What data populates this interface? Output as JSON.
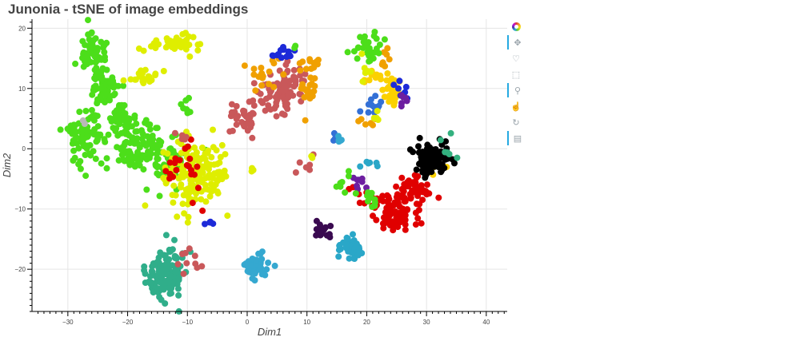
{
  "chart_data": {
    "type": "scatter",
    "title": "Junonia - tSNE of image embeddings",
    "xlabel": "Dim1",
    "ylabel": "Dim2",
    "xlim": [
      -36,
      43.5
    ],
    "ylim": [
      -27,
      21.5
    ],
    "xticks": [
      -30,
      -20,
      -10,
      0,
      10,
      20,
      30,
      40
    ],
    "yticks": [
      -20,
      -10,
      0,
      10,
      20
    ],
    "xtick_labels": [
      "−30",
      "−20",
      "−10",
      "0",
      "10",
      "20",
      "30",
      "40"
    ],
    "ytick_labels": [
      "−20",
      "−10",
      "0",
      "10",
      "20"
    ],
    "grid": true,
    "clusters": [
      {
        "color": "#4cde1a",
        "cx": -26,
        "cy": 16,
        "sx": 1.2,
        "sy": 1.6,
        "n": 60
      },
      {
        "color": "#4cde1a",
        "cx": -24,
        "cy": 10,
        "sx": 1.3,
        "sy": 1.8,
        "n": 55
      },
      {
        "color": "#4cde1a",
        "cx": -27,
        "cy": 2,
        "sx": 1.6,
        "sy": 2.0,
        "n": 80
      },
      {
        "color": "#4cde1a",
        "cx": -21,
        "cy": 4,
        "sx": 1.5,
        "sy": 1.5,
        "n": 45
      },
      {
        "color": "#4cde1a",
        "cx": -18,
        "cy": 0,
        "sx": 2.2,
        "sy": 2.2,
        "n": 90
      },
      {
        "color": "#4cde1a",
        "cx": -13,
        "cy": -2,
        "sx": 1.5,
        "sy": 2.2,
        "n": 45
      },
      {
        "color": "#4cde1a",
        "cx": -10,
        "cy": 7,
        "sx": 0.5,
        "sy": 0.8,
        "n": 8
      },
      {
        "color": "#dfee00",
        "cx": -12,
        "cy": 17.5,
        "sx": 1.8,
        "sy": 0.8,
        "n": 40
      },
      {
        "color": "#dfee00",
        "cx": -17,
        "cy": 12,
        "sx": 1.3,
        "sy": 0.8,
        "n": 25
      },
      {
        "color": "#dfee00",
        "cx": -9,
        "cy": -4,
        "sx": 2.5,
        "sy": 3.0,
        "n": 160
      },
      {
        "color": "#dfee00",
        "cx": -4,
        "cy": -4,
        "sx": 0.5,
        "sy": 0.5,
        "n": 4
      },
      {
        "color": "#e00000",
        "cx": -10,
        "cy": -4,
        "sx": 2.2,
        "sy": 2.5,
        "n": 22
      },
      {
        "color": "#e00000",
        "cx": 25,
        "cy": -10,
        "sx": 2.0,
        "sy": 1.5,
        "n": 70
      },
      {
        "color": "#e00000",
        "cx": 28,
        "cy": -7,
        "sx": 1.5,
        "sy": 1.3,
        "n": 40
      },
      {
        "color": "#e00000",
        "cx": 24,
        "cy": -13,
        "sx": 0.8,
        "sy": 1.0,
        "n": 12
      },
      {
        "color": "#e00000",
        "cx": 20,
        "cy": -8,
        "sx": 1.5,
        "sy": 1.5,
        "n": 12
      },
      {
        "color": "#30ae8a",
        "cx": -14,
        "cy": -21,
        "sx": 1.5,
        "sy": 1.8,
        "n": 130
      },
      {
        "color": "#30ae8a",
        "cx": -12,
        "cy": -17,
        "sx": 1.2,
        "sy": 0.8,
        "n": 12
      },
      {
        "color": "#c9585a",
        "cx": 6,
        "cy": 10,
        "sx": 1.8,
        "sy": 1.8,
        "n": 90
      },
      {
        "color": "#c9585a",
        "cx": 0,
        "cy": 5,
        "sx": 1.2,
        "sy": 1.5,
        "n": 35
      },
      {
        "color": "#c9585a",
        "cx": -10,
        "cy": -19,
        "sx": 1.3,
        "sy": 1.3,
        "n": 10
      },
      {
        "color": "#c9585a",
        "cx": 10,
        "cy": -3,
        "sx": 0.8,
        "sy": 0.6,
        "n": 6
      },
      {
        "color": "#c9585a",
        "cx": -11,
        "cy": 2,
        "sx": 0.8,
        "sy": 0.8,
        "n": 5
      },
      {
        "color": "#f0a000",
        "cx": 10,
        "cy": 11,
        "sx": 0.8,
        "sy": 2.0,
        "n": 25
      },
      {
        "color": "#f0a000",
        "cx": 3,
        "cy": 12,
        "sx": 1.5,
        "sy": 1.5,
        "n": 18
      },
      {
        "color": "#f0a000",
        "cx": 11,
        "cy": 14.5,
        "sx": 0.6,
        "sy": 0.4,
        "n": 6
      },
      {
        "color": "#f0a000",
        "cx": 23,
        "cy": 15,
        "sx": 0.4,
        "sy": 1.0,
        "n": 8
      },
      {
        "color": "#f0a000",
        "cx": 20,
        "cy": 4.5,
        "sx": 0.8,
        "sy": 0.8,
        "n": 6
      },
      {
        "color": "#fbd100",
        "cx": 24,
        "cy": 10,
        "sx": 1.0,
        "sy": 1.5,
        "n": 40
      },
      {
        "color": "#fbd100",
        "cx": 21,
        "cy": 12,
        "sx": 0.8,
        "sy": 0.8,
        "n": 10
      },
      {
        "color": "#fbd100",
        "cx": 30,
        "cy": -4,
        "sx": 1.5,
        "sy": 1.0,
        "n": 6
      },
      {
        "color": "#1d2ad8",
        "cx": 6,
        "cy": 15.5,
        "sx": 0.8,
        "sy": 0.5,
        "n": 14
      },
      {
        "color": "#1d2ad8",
        "cx": -6,
        "cy": -12.5,
        "sx": 0.8,
        "sy": 0.2,
        "n": 4
      },
      {
        "color": "#1d2ad8",
        "cx": 25,
        "cy": 9,
        "sx": 1.0,
        "sy": 1.5,
        "n": 8
      },
      {
        "color": "#3370d6",
        "cx": 21,
        "cy": 7,
        "sx": 0.7,
        "sy": 0.7,
        "n": 14
      },
      {
        "color": "#3370d6",
        "cx": 15,
        "cy": 1.5,
        "sx": 0.3,
        "sy": 0.5,
        "n": 6
      },
      {
        "color": "#2aa7c8",
        "cx": 17.5,
        "cy": -16.5,
        "sx": 1.0,
        "sy": 1.0,
        "n": 45
      },
      {
        "color": "#2aa7c8",
        "cx": 20.5,
        "cy": -2.5,
        "sx": 0.8,
        "sy": 0.3,
        "n": 6
      },
      {
        "color": "#35a8d0",
        "cx": 1.5,
        "cy": -19.5,
        "sx": 1.0,
        "sy": 1.1,
        "n": 55
      },
      {
        "color": "#35a8d0",
        "cx": 15.5,
        "cy": 1.5,
        "sx": 0.3,
        "sy": 0.4,
        "n": 5
      },
      {
        "color": "#3a0a50",
        "cx": 12.5,
        "cy": -13.5,
        "sx": 0.7,
        "sy": 0.6,
        "n": 20
      },
      {
        "color": "#6d1ea0",
        "cx": 19,
        "cy": -5.5,
        "sx": 0.6,
        "sy": 0.6,
        "n": 8
      },
      {
        "color": "#6d1ea0",
        "cx": 26,
        "cy": 8,
        "sx": 0.5,
        "sy": 0.5,
        "n": 6
      },
      {
        "color": "#4cde1a",
        "cx": 20,
        "cy": 16.5,
        "sx": 1.2,
        "sy": 1.2,
        "n": 30
      },
      {
        "color": "#4cde1a",
        "cx": 21,
        "cy": -8,
        "sx": 0.6,
        "sy": 1.0,
        "n": 10
      },
      {
        "color": "#4cde1a",
        "cx": 16,
        "cy": -6,
        "sx": 1.0,
        "sy": 0.8,
        "n": 8
      },
      {
        "color": "#dfee00",
        "cx": 20,
        "cy": 13,
        "sx": 0.5,
        "sy": 1.0,
        "n": 8
      },
      {
        "color": "#dfee00",
        "cx": 22,
        "cy": 5,
        "sx": 0.5,
        "sy": 0.5,
        "n": 5
      },
      {
        "color": "#000000",
        "cx": 31,
        "cy": -1.5,
        "sx": 1.4,
        "sy": 1.3,
        "n": 110
      },
      {
        "color": "#33b17f",
        "cx": 34,
        "cy": 0,
        "sx": 1.0,
        "sy": 1.0,
        "n": 6
      },
      {
        "color": "#dfee00",
        "cx": 11,
        "cy": -1.5,
        "sx": 0.2,
        "sy": 0.2,
        "n": 3
      },
      {
        "color": "#dfee00",
        "cx": 1,
        "cy": -3.5,
        "sx": 0.3,
        "sy": 0.3,
        "n": 4
      },
      {
        "color": "#b9b9b9",
        "cx": -27,
        "cy": 4.5,
        "sx": 0.3,
        "sy": 0.3,
        "n": 2
      },
      {
        "color": "#4cde1a",
        "cx": 8,
        "cy": 17,
        "sx": 0.3,
        "sy": 0.3,
        "n": 2
      }
    ]
  },
  "toolbar": {
    "tools": [
      "bokeh-logo-icon",
      "pan-icon",
      "lasso-select-icon",
      "box-select-icon",
      "wheel-zoom-icon",
      "tap-icon",
      "reset-icon",
      "hover-icon"
    ]
  }
}
